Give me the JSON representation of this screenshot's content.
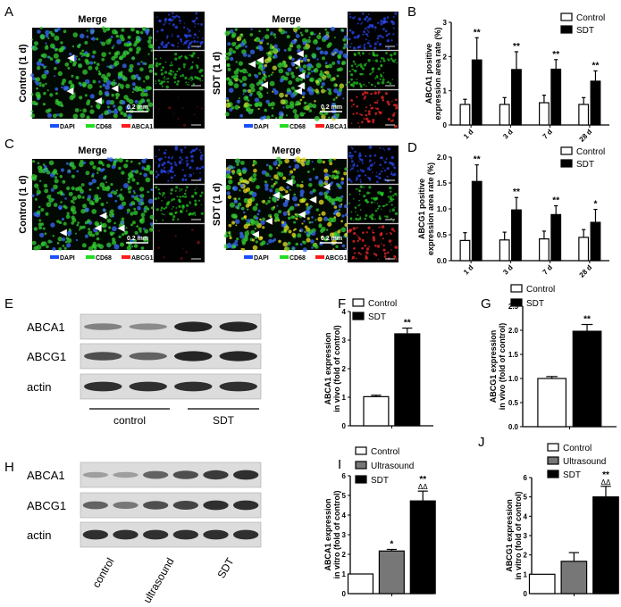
{
  "panels": {
    "A": "A",
    "B": "B",
    "C": "C",
    "D": "D",
    "E": "E",
    "F": "F",
    "G": "G",
    "H": "H",
    "I": "I",
    "J": "J"
  },
  "microscopy": [
    {
      "title": "Merge",
      "side_label": "Control (1 d)",
      "scale": "0.2 mm",
      "legend": [
        "DAPI",
        "CD68",
        "ABCA1"
      ],
      "style": "control"
    },
    {
      "title": "Merge",
      "side_label": "SDT (1 d)",
      "scale": "0.2 mm",
      "legend": [
        "DAPI",
        "CD68",
        "ABCA1"
      ],
      "style": "sdt"
    },
    {
      "title": "Merge",
      "side_label": "Control (1 d)",
      "scale": "0.2 mm",
      "legend": [
        "DAPI",
        "CD68",
        "ABCG1"
      ],
      "style": "control"
    },
    {
      "title": "Merge",
      "side_label": "SDT (1 d)",
      "scale": "0.2 mm",
      "legend": [
        "DAPI",
        "CD68",
        "ABCG1"
      ],
      "style": "sdt"
    }
  ],
  "channel_colors": {
    "DAPI": "#1a4fff",
    "CD68": "#22dd22",
    "red": "#ff1a1a"
  },
  "westerns": [
    {
      "rows": [
        "ABCA1",
        "ABCG1",
        "actin"
      ],
      "groups": [
        "control",
        "SDT"
      ]
    },
    {
      "rows": [
        "ABCA1",
        "ABCG1",
        "actin"
      ],
      "groups": [
        "control",
        "ultrasound",
        "SDT"
      ]
    }
  ],
  "chart_data": [
    {
      "panel": "B",
      "type": "bar",
      "ylabel": [
        "ABCA1 positive",
        "expression area rate (%)"
      ],
      "ylim": [
        0,
        3
      ],
      "yticks": [
        "0",
        "1",
        "2",
        "3"
      ],
      "categories": [
        "1 d",
        "3 d",
        "7 d",
        "28 d"
      ],
      "series": [
        {
          "name": "Control",
          "color": "#ffffff",
          "values": [
            0.6,
            0.6,
            0.65,
            0.6
          ],
          "errors": [
            0.15,
            0.2,
            0.22,
            0.2
          ],
          "marks": [
            "",
            "",
            "",
            ""
          ]
        },
        {
          "name": "SDT",
          "color": "#000000",
          "values": [
            1.9,
            1.62,
            1.63,
            1.28
          ],
          "errors": [
            0.65,
            0.52,
            0.28,
            0.3
          ],
          "marks": [
            "**",
            "**",
            "**",
            "**"
          ]
        }
      ]
    },
    {
      "panel": "D",
      "type": "bar",
      "ylabel": [
        "ABCG1 positive",
        "expression area rate (%)"
      ],
      "ylim": [
        0,
        2
      ],
      "yticks": [
        "0.0",
        "0.5",
        "1.0",
        "1.5",
        "2.0"
      ],
      "categories": [
        "1 d",
        "3 d",
        "7 d",
        "28 d"
      ],
      "series": [
        {
          "name": "Control",
          "color": "#ffffff",
          "values": [
            0.39,
            0.4,
            0.42,
            0.45
          ],
          "errors": [
            0.15,
            0.15,
            0.15,
            0.15
          ],
          "marks": [
            "",
            "",
            "",
            ""
          ]
        },
        {
          "name": "SDT",
          "color": "#000000",
          "values": [
            1.53,
            0.98,
            0.89,
            0.74
          ],
          "errors": [
            0.32,
            0.24,
            0.17,
            0.25
          ],
          "marks": [
            "**",
            "**",
            "**",
            "*"
          ]
        }
      ]
    },
    {
      "panel": "F",
      "type": "bar",
      "ylabel": [
        "ABCA1 expression",
        "in vivo (fold of control)"
      ],
      "ylim": [
        0,
        4
      ],
      "yticks": [
        "0",
        "1",
        "2",
        "3",
        "4"
      ],
      "categories": [
        ""
      ],
      "series": [
        {
          "name": "Control",
          "color": "#ffffff",
          "values": [
            1.02
          ],
          "errors": [
            0.05
          ],
          "marks": [
            ""
          ]
        },
        {
          "name": "SDT",
          "color": "#000000",
          "values": [
            3.22
          ],
          "errors": [
            0.2
          ],
          "marks": [
            "**"
          ]
        }
      ]
    },
    {
      "panel": "G",
      "type": "bar",
      "ylabel": [
        "ABCG1 expression",
        "in vivo (fold of control)"
      ],
      "ylim": [
        0,
        2.5
      ],
      "yticks": [
        "0.0",
        "0.5",
        "1.0",
        "1.5",
        "2.0",
        "2.5"
      ],
      "categories": [
        ""
      ],
      "series": [
        {
          "name": "Control",
          "color": "#ffffff",
          "values": [
            1.0
          ],
          "errors": [
            0.04
          ],
          "marks": [
            ""
          ]
        },
        {
          "name": "SDT",
          "color": "#000000",
          "values": [
            1.98
          ],
          "errors": [
            0.14
          ],
          "marks": [
            "**"
          ]
        }
      ]
    },
    {
      "panel": "I",
      "type": "bar",
      "ylabel": [
        "ABCA1 expression",
        "in vitro (fold of control)"
      ],
      "ylim": [
        0,
        6
      ],
      "yticks": [
        "0",
        "1",
        "2",
        "3",
        "4",
        "5",
        "6"
      ],
      "categories": [
        ""
      ],
      "series": [
        {
          "name": "Control",
          "color": "#ffffff",
          "values": [
            1.0
          ],
          "errors": [
            0
          ],
          "marks": [
            ""
          ]
        },
        {
          "name": "Ultrasound",
          "color": "#777777",
          "values": [
            2.17
          ],
          "errors": [
            0.08
          ],
          "marks": [
            "*"
          ]
        },
        {
          "name": "SDT",
          "color": "#000000",
          "values": [
            4.72
          ],
          "errors": [
            0.5
          ],
          "marks": [
            "**\nΔΔ"
          ]
        }
      ]
    },
    {
      "panel": "J",
      "type": "bar",
      "ylabel": [
        "ABCG1 expression",
        "in vitro (fold of control)"
      ],
      "ylim": [
        0,
        6
      ],
      "yticks": [
        "0",
        "1",
        "2",
        "3",
        "4",
        "5",
        "6"
      ],
      "categories": [
        ""
      ],
      "series": [
        {
          "name": "Control",
          "color": "#ffffff",
          "values": [
            1.0
          ],
          "errors": [
            0
          ],
          "marks": [
            ""
          ]
        },
        {
          "name": "Ultrasound",
          "color": "#777777",
          "values": [
            1.67
          ],
          "errors": [
            0.45
          ],
          "marks": [
            ""
          ]
        },
        {
          "name": "SDT",
          "color": "#000000",
          "values": [
            5.0
          ],
          "errors": [
            0.55
          ],
          "marks": [
            "**\nΔΔ"
          ]
        }
      ]
    }
  ]
}
